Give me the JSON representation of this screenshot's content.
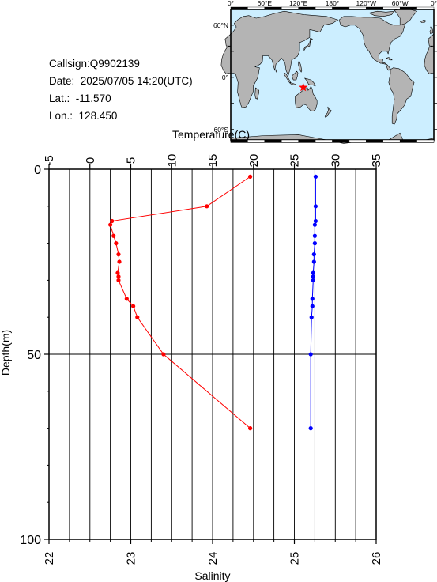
{
  "station": {
    "callsign_label": "Callsign:",
    "callsign": "Q9902139",
    "date_label": "Date:",
    "date": "2025/07/05 14:20(UTC)",
    "lat_label": "Lat.:",
    "lat": "-11.570",
    "lon_label": "Lon.:",
    "lon": "128.450"
  },
  "map": {
    "top_ticks": [
      "0°",
      "60°E",
      "120°E",
      "180°",
      "120°W",
      "60°W",
      "0°"
    ],
    "left_ticks": [
      "60°N",
      "0°",
      "60°S"
    ],
    "marker_lat": -11.57,
    "marker_lon": 128.45,
    "ocean_color": "#cceeff",
    "land_color": "#b4b4b4",
    "marker_color": "#ff0000"
  },
  "chart_data": {
    "type": "line",
    "title": "",
    "ylabel": "Depth(m)",
    "ylim": [
      0,
      100
    ],
    "y_inverted": true,
    "y_ticks": [
      "0",
      "50",
      "100"
    ],
    "y_tick_values": [
      0,
      50,
      100
    ],
    "top_axis": {
      "label": "Temperature(C)",
      "range": [
        -5,
        35
      ],
      "ticks": [
        "-5",
        "0",
        "5",
        "10",
        "15",
        "20",
        "25",
        "30",
        "35"
      ],
      "tick_values": [
        -5,
        0,
        5,
        10,
        15,
        20,
        25,
        30,
        35
      ]
    },
    "bottom_axis": {
      "label": "Salinity",
      "range": [
        22,
        26
      ],
      "ticks": [
        "22",
        "23",
        "24",
        "25",
        "26"
      ],
      "tick_values": [
        22,
        23,
        24,
        25,
        26
      ]
    },
    "grid": true,
    "series": [
      {
        "axis": "top",
        "color": "#ff0000",
        "depth": [
          2,
          10,
          14,
          15,
          18,
          20,
          23,
          25,
          28,
          29,
          30,
          35,
          37,
          40,
          50,
          70
        ],
        "values": [
          19.6,
          14.3,
          2.7,
          2.5,
          2.9,
          3.2,
          3.5,
          3.6,
          3.4,
          3.5,
          3.5,
          4.5,
          5.3,
          5.8,
          9.0,
          19.6
        ]
      },
      {
        "axis": "bottom",
        "color": "#0000ff",
        "depth": [
          2,
          10,
          14,
          15,
          18,
          20,
          23,
          25,
          28,
          29,
          30,
          35,
          37,
          40,
          50,
          70
        ],
        "values": [
          25.26,
          25.26,
          25.26,
          25.25,
          25.25,
          25.25,
          25.24,
          25.24,
          25.23,
          25.23,
          25.23,
          25.22,
          25.22,
          25.21,
          25.2,
          25.2
        ]
      }
    ]
  }
}
